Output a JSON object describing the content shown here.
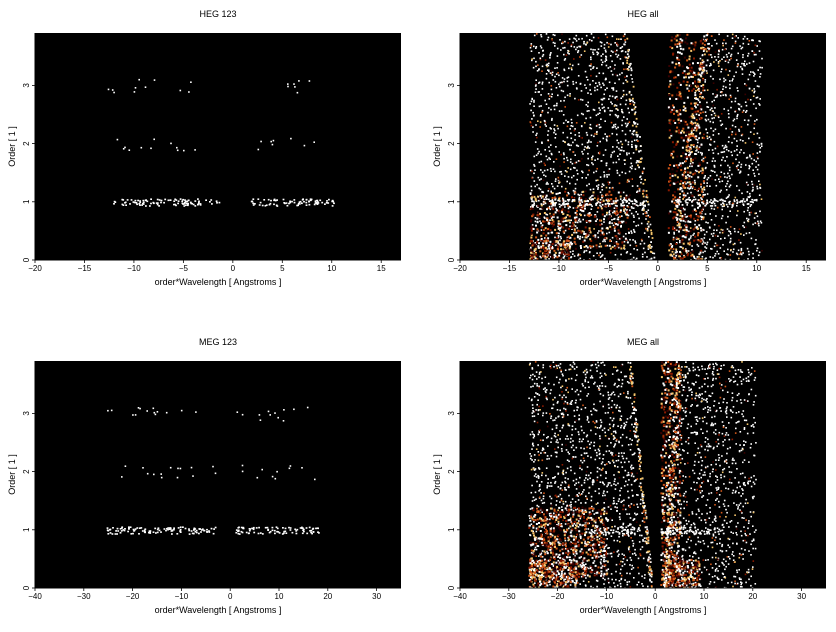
{
  "chart_data": [
    {
      "type": "heatmap",
      "title": "HEG 123",
      "xlabel": "order*Wavelength [ Angstroms ]",
      "ylabel": "Order [ 1 ]",
      "xlim": [
        -20,
        17
      ],
      "ylim": [
        0,
        3.9
      ],
      "xticks": [
        -20,
        -15,
        -10,
        -5,
        0,
        5,
        10,
        15
      ],
      "yticks": [
        0,
        1,
        2,
        3
      ],
      "background": "#000000",
      "colormap": [
        "#3a0000",
        "#8b1a00",
        "#d2581a",
        "#f6c66b",
        "#ffffff"
      ],
      "bands": [
        {
          "order": 1,
          "x_ranges": [
            [
              -12.2,
              -1.4
            ],
            [
              1.6,
              10.2
            ]
          ],
          "density": "high",
          "intensity": "white"
        },
        {
          "order": 2,
          "x_ranges": [
            [
              -12.0,
              -2.4
            ],
            [
              2.4,
              9.4
            ]
          ],
          "density": "sparse",
          "intensity": "white"
        },
        {
          "order": 3,
          "x_ranges": [
            [
              -12.8,
              -3.6
            ],
            [
              3.5,
              9.0
            ]
          ],
          "density": "sparse",
          "intensity": "white"
        }
      ]
    },
    {
      "type": "heatmap",
      "title": "HEG all",
      "xlabel": "order*Wavelength [ Angstroms ]",
      "ylabel": "Order [ 1 ]",
      "xlim": [
        -20,
        17
      ],
      "ylim": [
        0,
        3.9
      ],
      "xticks": [
        -20,
        -15,
        -10,
        -5,
        0,
        5,
        10,
        15
      ],
      "yticks": [
        0,
        1,
        2,
        3
      ],
      "background": "#000000",
      "colormap": [
        "#3a0000",
        "#8b1a00",
        "#d2581a",
        "#f6c66b",
        "#ffffff"
      ],
      "background_region": {
        "x_range": [
          -13,
          10.5
        ],
        "notch_top_x": [
          -3.2,
          4.6
        ],
        "notch_bottom_x": [
          -0.3,
          1.0
        ]
      },
      "bands": [
        {
          "order": 1,
          "x_ranges": [
            [
              -12.2,
              -1.4
            ],
            [
              1.6,
              10.2
            ]
          ],
          "density": "high",
          "intensity": "white"
        }
      ],
      "hot_regions": [
        {
          "x": [
            -13,
            -9
          ],
          "y": [
            0,
            0.35
          ]
        },
        {
          "x": [
            -13,
            -3
          ],
          "y": [
            0.2,
            1.2
          ]
        },
        {
          "x": [
            1,
            4.6
          ],
          "y": [
            0,
            3.9
          ]
        }
      ]
    },
    {
      "type": "heatmap",
      "title": "MEG 123",
      "xlabel": "order*Wavelength [ Angstroms ]",
      "ylabel": "Order [ 1 ]",
      "xlim": [
        -40,
        35
      ],
      "ylim": [
        0,
        3.9
      ],
      "xticks": [
        -40,
        -30,
        -20,
        -10,
        0,
        10,
        20,
        30
      ],
      "yticks": [
        0,
        1,
        2,
        3
      ],
      "background": "#000000",
      "colormap": [
        "#3a0000",
        "#8b1a00",
        "#d2581a",
        "#f6c66b",
        "#ffffff"
      ],
      "bands": [
        {
          "order": 1,
          "x_ranges": [
            [
              -25.5,
              -3
            ],
            [
              1,
              18
            ]
          ],
          "density": "high",
          "intensity": "white"
        },
        {
          "order": 2,
          "x_ranges": [
            [
              -24,
              -2
            ],
            [
              2,
              19
            ]
          ],
          "density": "sparse",
          "intensity": "white"
        },
        {
          "order": 3,
          "x_ranges": [
            [
              -25.5,
              -4
            ],
            [
              1,
              19
            ]
          ],
          "density": "sparse",
          "intensity": "white"
        }
      ]
    },
    {
      "type": "heatmap",
      "title": "MEG all",
      "xlabel": "order*Wavelength [ Angstroms ]",
      "ylabel": "Order [ 1 ]",
      "xlim": [
        -40,
        35
      ],
      "ylim": [
        0,
        3.9
      ],
      "xticks": [
        -40,
        -30,
        -20,
        -10,
        0,
        10,
        20,
        30
      ],
      "yticks": [
        0,
        1,
        2,
        3
      ],
      "background": "#000000",
      "colormap": [
        "#3a0000",
        "#8b1a00",
        "#d2581a",
        "#f6c66b",
        "#ffffff"
      ],
      "background_region": {
        "x_range": [
          -26,
          20.5
        ],
        "notch_top_x": [
          -5,
          4.5
        ],
        "notch_bottom_x": [
          -0.5,
          1.5
        ]
      },
      "bands": [
        {
          "order": 1,
          "x_ranges": [
            [
              -14,
              -3
            ],
            [
              1,
              14
            ]
          ],
          "density": "high",
          "intensity": "white"
        }
      ],
      "hot_regions": [
        {
          "x": [
            -26,
            -16
          ],
          "y": [
            0,
            0.5
          ]
        },
        {
          "x": [
            -26,
            -10
          ],
          "y": [
            0.2,
            1.4
          ]
        },
        {
          "x": [
            1,
            5
          ],
          "y": [
            0,
            3.9
          ]
        },
        {
          "x": [
            2,
            9
          ],
          "y": [
            0,
            0.5
          ]
        }
      ]
    }
  ]
}
